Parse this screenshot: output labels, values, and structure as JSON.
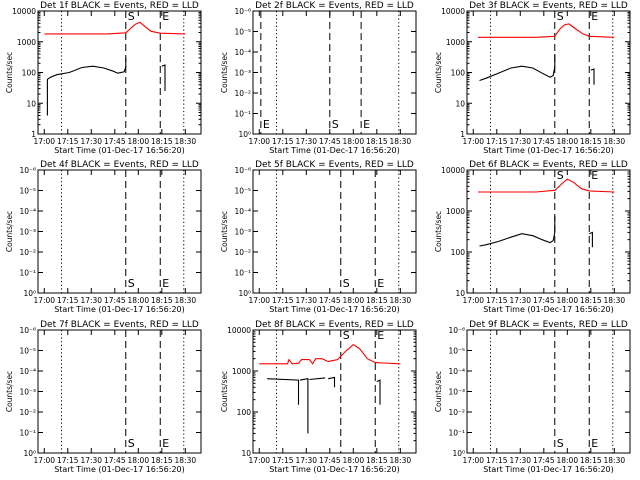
{
  "figure": {
    "xlabel": "Start Time (01-Dec-17 16:56:20)",
    "ylabel": "Counts/sec",
    "colors": {
      "events": "#000000",
      "lld": "#ff0000",
      "axes": "#000000"
    }
  },
  "chart_data": [
    {
      "type": "line",
      "title": "Det 1f BLACK = Events, RED = LLD",
      "x_ticks": [
        "17:00",
        "17:15",
        "17:30",
        "17:45",
        "18:00",
        "18:15",
        "18:30"
      ],
      "y_ticks": [
        "1",
        "10",
        "100",
        "1000",
        "10000"
      ],
      "ylim": [
        1,
        10000
      ],
      "ylog": true,
      "markers": [
        {
          "label": "S",
          "x": "17:52"
        },
        {
          "label": "E",
          "x": "18:14"
        }
      ],
      "series": [
        {
          "name": "LLD",
          "color": "#ff0000",
          "points": [
            [
              "17:00",
              1800
            ],
            [
              "17:40",
              1800
            ],
            [
              "17:52",
              1950
            ],
            [
              "17:55",
              2700
            ],
            [
              "17:58",
              3700
            ],
            [
              "18:01",
              4300
            ],
            [
              "18:04",
              3200
            ],
            [
              "18:08",
              2200
            ],
            [
              "18:14",
              1900
            ],
            [
              "18:30",
              1800
            ]
          ]
        },
        {
          "name": "Events",
          "color": "#000000",
          "segments": [
            [
              [
                "17:02",
                4
              ],
              [
                "17:02",
                60
              ],
              [
                "17:04",
                70
              ],
              [
                "17:08",
                85
              ],
              [
                "17:16",
                100
              ],
              [
                "17:24",
                145
              ],
              [
                "17:31",
                160
              ],
              [
                "17:38",
                140
              ],
              [
                "17:44",
                110
              ],
              [
                "17:47",
                95
              ],
              [
                "17:51",
                105
              ],
              [
                "17:52",
                150
              ],
              [
                "17:52",
                310
              ]
            ],
            [
              [
                "18:15",
                160
              ],
              [
                "18:17",
                175
              ],
              [
                "18:17",
                25
              ]
            ]
          ]
        }
      ]
    },
    {
      "type": "line",
      "title": "Det 2f BLACK = Events, RED = LLD",
      "x_ticks": [
        "17:00",
        "17:15",
        "17:30",
        "17:45",
        "18:00",
        "18:15",
        "18:30"
      ],
      "y_ticks": [
        "10⁰",
        "10⁻¹",
        "10⁻²",
        "10⁻³",
        "10⁻⁴",
        "10⁻⁵",
        "10⁻⁶"
      ],
      "markers": [
        {
          "label": "E",
          "x": "17:01"
        },
        {
          "label": "S",
          "x": "17:45"
        },
        {
          "label": "E",
          "x": "18:05"
        }
      ],
      "series": []
    },
    {
      "type": "line",
      "title": "Det 3f BLACK = Events, RED = LLD",
      "x_ticks": [
        "17:00",
        "17:15",
        "17:30",
        "17:45",
        "18:00",
        "18:15",
        "18:30"
      ],
      "y_ticks": [
        "1",
        "10",
        "100",
        "1000",
        "10000"
      ],
      "ylim": [
        1,
        10000
      ],
      "ylog": true,
      "markers": [
        {
          "label": "S",
          "x": "17:52"
        },
        {
          "label": "E",
          "x": "18:14"
        }
      ],
      "series": [
        {
          "name": "LLD",
          "color": "#ff0000",
          "points": [
            [
              "17:03",
              1400
            ],
            [
              "17:40",
              1400
            ],
            [
              "17:52",
              1500
            ],
            [
              "17:55",
              2500
            ],
            [
              "17:58",
              3500
            ],
            [
              "18:01",
              3800
            ],
            [
              "18:05",
              2700
            ],
            [
              "18:10",
              1800
            ],
            [
              "18:14",
              1500
            ],
            [
              "18:30",
              1400
            ]
          ]
        },
        {
          "name": "Events",
          "color": "#000000",
          "segments": [
            [
              [
                "17:04",
                55
              ],
              [
                "17:08",
                65
              ],
              [
                "17:16",
                95
              ],
              [
                "17:24",
                140
              ],
              [
                "17:31",
                160
              ],
              [
                "17:38",
                140
              ],
              [
                "17:44",
                95
              ],
              [
                "17:49",
                70
              ],
              [
                "17:51",
                80
              ],
              [
                "17:52",
                150
              ],
              [
                "17:52",
                400
              ]
            ],
            [
              [
                "18:15",
                120
              ],
              [
                "18:17",
                130
              ],
              [
                "18:17",
                40
              ]
            ]
          ]
        }
      ]
    },
    {
      "type": "line",
      "title": "Det 4f BLACK = Events, RED = LLD",
      "x_ticks": [
        "17:00",
        "17:15",
        "17:30",
        "17:45",
        "18:00",
        "18:15",
        "18:30"
      ],
      "y_ticks": [
        "10⁰",
        "10⁻¹",
        "10⁻²",
        "10⁻³",
        "10⁻⁴",
        "10⁻⁵",
        "10⁻⁶"
      ],
      "markers": [
        {
          "label": "S",
          "x": "17:52"
        },
        {
          "label": "E",
          "x": "18:14"
        }
      ],
      "series": []
    },
    {
      "type": "line",
      "title": "Det 5f BLACK = Events, RED = LLD",
      "x_ticks": [
        "17:00",
        "17:15",
        "17:30",
        "17:45",
        "18:00",
        "18:15",
        "18:30"
      ],
      "y_ticks": [
        "10⁰",
        "10⁻¹",
        "10⁻²",
        "10⁻³",
        "10⁻⁴",
        "10⁻⁵",
        "10⁻⁶"
      ],
      "markers": [
        {
          "label": "S",
          "x": "17:52"
        },
        {
          "label": "E",
          "x": "18:14"
        }
      ],
      "series": []
    },
    {
      "type": "line",
      "title": "Det 6f BLACK = Events, RED = LLD",
      "x_ticks": [
        "17:00",
        "17:15",
        "17:30",
        "17:45",
        "18:00",
        "18:15",
        "18:30"
      ],
      "y_ticks": [
        "10",
        "100",
        "1000",
        "10000"
      ],
      "ylim": [
        10,
        10000
      ],
      "ylog": true,
      "markers": [
        {
          "label": "S",
          "x": "17:52"
        },
        {
          "label": "E",
          "x": "18:14"
        }
      ],
      "series": [
        {
          "name": "LLD",
          "color": "#ff0000",
          "points": [
            [
              "17:03",
              2900
            ],
            [
              "17:40",
              2900
            ],
            [
              "17:52",
              3200
            ],
            [
              "17:56",
              4400
            ],
            [
              "18:00",
              6000
            ],
            [
              "18:04",
              5000
            ],
            [
              "18:09",
              3500
            ],
            [
              "18:14",
              3100
            ],
            [
              "18:30",
              2900
            ]
          ]
        },
        {
          "name": "Events",
          "color": "#000000",
          "segments": [
            [
              [
                "17:04",
                140
              ],
              [
                "17:08",
                150
              ],
              [
                "17:16",
                180
              ],
              [
                "17:24",
                230
              ],
              [
                "17:31",
                280
              ],
              [
                "17:38",
                250
              ],
              [
                "17:44",
                200
              ],
              [
                "17:49",
                170
              ],
              [
                "17:51",
                190
              ],
              [
                "17:52",
                300
              ],
              [
                "17:52",
                750
              ]
            ],
            [
              [
                "18:14",
                280
              ],
              [
                "18:16",
                300
              ],
              [
                "18:16",
                130
              ]
            ]
          ]
        }
      ]
    },
    {
      "type": "line",
      "title": "Det 7f BLACK = Events, RED = LLD",
      "x_ticks": [
        "17:00",
        "17:15",
        "17:30",
        "17:45",
        "18:00",
        "18:15",
        "18:30"
      ],
      "y_ticks": [
        "10⁰",
        "10⁻¹",
        "10⁻²",
        "10⁻³",
        "10⁻⁴",
        "10⁻⁵",
        "10⁻⁶"
      ],
      "markers": [
        {
          "label": "S",
          "x": "17:52"
        },
        {
          "label": "E",
          "x": "18:14"
        }
      ],
      "series": []
    },
    {
      "type": "line",
      "title": "Det 8f BLACK = Events, RED = LLD",
      "x_ticks": [
        "17:00",
        "17:15",
        "17:30",
        "17:45",
        "18:00",
        "18:15",
        "18:30"
      ],
      "y_ticks": [
        "10",
        "100",
        "1000",
        "10000"
      ],
      "ylim": [
        10,
        10000
      ],
      "ylog": true,
      "markers": [
        {
          "label": "S",
          "x": "17:52"
        },
        {
          "label": "E",
          "x": "18:14"
        }
      ],
      "series": [
        {
          "name": "LLD",
          "color": "#ff0000",
          "points": [
            [
              "17:00",
              1500
            ],
            [
              "17:18",
              1500
            ],
            [
              "17:19",
              1900
            ],
            [
              "17:21",
              1500
            ],
            [
              "17:25",
              1550
            ],
            [
              "17:27",
              1900
            ],
            [
              "17:32",
              1900
            ],
            [
              "17:34",
              1500
            ],
            [
              "17:36",
              2000
            ],
            [
              "17:40",
              2000
            ],
            [
              "17:44",
              1700
            ],
            [
              "17:50",
              1900
            ],
            [
              "17:55",
              3000
            ],
            [
              "18:00",
              4400
            ],
            [
              "18:04",
              3500
            ],
            [
              "18:09",
              2000
            ],
            [
              "18:14",
              1600
            ],
            [
              "18:30",
              1500
            ]
          ]
        },
        {
          "name": "Events",
          "color": "#000000",
          "segments": [
            [
              [
                "17:05",
                650
              ],
              [
                "17:25",
                600
              ],
              [
                "17:25",
                150
              ]
            ],
            [
              [
                "17:26",
                600
              ],
              [
                "17:31",
                650
              ],
              [
                "17:31",
                30
              ]
            ],
            [
              [
                "17:32",
                620
              ],
              [
                "17:42",
                680
              ]
            ],
            [
              [
                "17:44",
                650
              ],
              [
                "17:48",
                700
              ],
              [
                "17:48",
                400
              ]
            ],
            [
              [
                "18:15",
                550
              ],
              [
                "18:17",
                600
              ],
              [
                "18:17",
                150
              ]
            ]
          ]
        }
      ]
    },
    {
      "type": "line",
      "title": "Det 9f BLACK = Events, RED = LLD",
      "x_ticks": [
        "17:00",
        "17:15",
        "17:30",
        "17:45",
        "18:00",
        "18:15",
        "18:30"
      ],
      "y_ticks": [
        "10⁰",
        "10⁻¹",
        "10⁻²",
        "10⁻³",
        "10⁻⁴",
        "10⁻⁵",
        "10⁻⁶"
      ],
      "markers": [
        {
          "label": "S",
          "x": "17:52"
        },
        {
          "label": "E",
          "x": "18:14"
        }
      ],
      "series": []
    }
  ]
}
